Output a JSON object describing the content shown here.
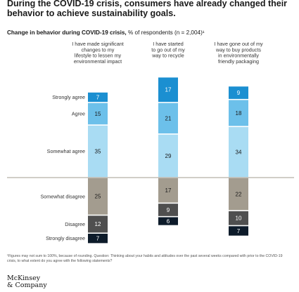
{
  "title": "During the COVID-19 crisis, consumers have already changed their behavior to achieve sustainability goals.",
  "subtitle_bold": "Change in behavior during COVID-19 crisis,",
  "subtitle_rest": " % of respondents (n = 2,004)¹",
  "footnote": "¹Figures may not sum to 100%, because of rounding. Question: Thinking about your habits and attitudes over the past several weeks compared with prior to the COVID-19 crisis, to what extent do you agree with the following statements?",
  "logo_line1": "McKinsey",
  "logo_line2": "& Company",
  "chart_data": {
    "type": "bar",
    "stacked": "diverging",
    "categories": [
      "I have made significant changes to my lifestyle to lessen my environmental impact",
      "I have started to go out of my way to recycle",
      "I have gone out of my way to buy products in environmentally friendly packaging"
    ],
    "category_lines": [
      [
        "I have made significant",
        "changes to my",
        "lifestyle to lessen my",
        "environmental impact"
      ],
      [
        "I have started",
        "to go out of my",
        "way to recycle"
      ],
      [
        "I have gone out of my",
        "way to buy products",
        "in environmentally",
        "friendly packaging"
      ]
    ],
    "series": [
      {
        "name": "Strongly agree",
        "color": "#1b8fd1",
        "values": [
          7,
          17,
          9
        ]
      },
      {
        "name": "Agree",
        "color": "#6cc0ea",
        "values": [
          15,
          21,
          18
        ]
      },
      {
        "name": "Somewhat agree",
        "color": "#a9dcf3",
        "values": [
          35,
          29,
          34
        ]
      },
      {
        "name": "Somewhat disagree",
        "color": "#a39c8f",
        "values": [
          25,
          17,
          22
        ]
      },
      {
        "name": "Disagree",
        "color": "#4f4f4f",
        "values": [
          12,
          9,
          10
        ]
      },
      {
        "name": "Strongly disagree",
        "color": "#0d1b2a",
        "values": [
          7,
          6,
          7
        ]
      }
    ],
    "baseline_color": "#a39c8f"
  }
}
